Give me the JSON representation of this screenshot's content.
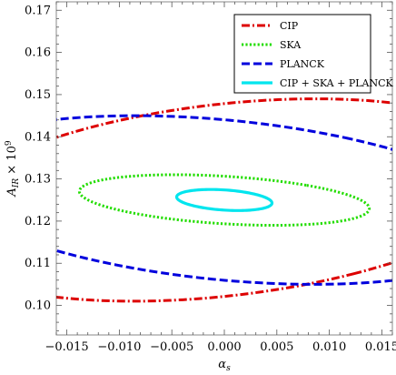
{
  "chart_data": {
    "type": "contour",
    "xlabel": "α_s",
    "ylabel": "A_IR × 10^9",
    "xlim": [
      -0.016,
      0.016
    ],
    "ylim": [
      0.093,
      0.172
    ],
    "xticks": [
      "−0.015",
      "−0.010",
      "−0.005",
      "0.000",
      "0.005",
      "0.010",
      "0.015"
    ],
    "xtick_values": [
      -0.015,
      -0.01,
      -0.005,
      0.0,
      0.005,
      0.01,
      0.015
    ],
    "yticks": [
      "0.10",
      "0.11",
      "0.12",
      "0.13",
      "0.14",
      "0.15",
      "0.16",
      "0.17"
    ],
    "ytick_values": [
      0.1,
      0.11,
      0.12,
      0.13,
      0.14,
      0.15,
      0.16,
      0.17
    ],
    "grid": false,
    "legend_position": "top-right",
    "series": [
      {
        "name": "CIP",
        "color": "#dd0000",
        "dash": "dash-dot",
        "ellipse": {
          "center": [
            0.0,
            0.125
          ],
          "extreme_points": [
            [
              -0.0087,
              0.149
            ],
            [
              0.0087,
              0.101
            ],
            [
              -0.0123,
              0.1425
            ],
            [
              0.0123,
              0.1075
            ]
          ]
        }
      },
      {
        "name": "SKA",
        "color": "#22dd00",
        "dash": "dotted",
        "ellipse": {
          "center": [
            0.0,
            0.125
          ],
          "extreme_points": [
            [
              0.0047,
              0.131
            ],
            [
              -0.0047,
              0.119
            ],
            [
              -0.0078,
              0.1215
            ],
            [
              0.0078,
              0.1285
            ]
          ]
        }
      },
      {
        "name": "PLANCK",
        "color": "#0000dd",
        "dash": "dashed",
        "ellipse": {
          "center": [
            0.0,
            0.125
          ],
          "extreme_points": [
            [
              0.0085,
              0.145
            ],
            [
              -0.0085,
              0.105
            ],
            [
              -0.012,
              0.1105
            ],
            [
              0.012,
              0.1395
            ]
          ]
        }
      },
      {
        "name": "CIP + SKA + PLANCK",
        "color": "#00e5ee",
        "dash": "solid",
        "ellipse": {
          "center": [
            0.0,
            0.125
          ],
          "extreme_points": [
            [
              0.0013,
              0.1275
            ],
            [
              -0.0013,
              0.1225
            ],
            [
              -0.0027,
              0.1235
            ],
            [
              0.0027,
              0.1265
            ]
          ]
        }
      }
    ]
  }
}
